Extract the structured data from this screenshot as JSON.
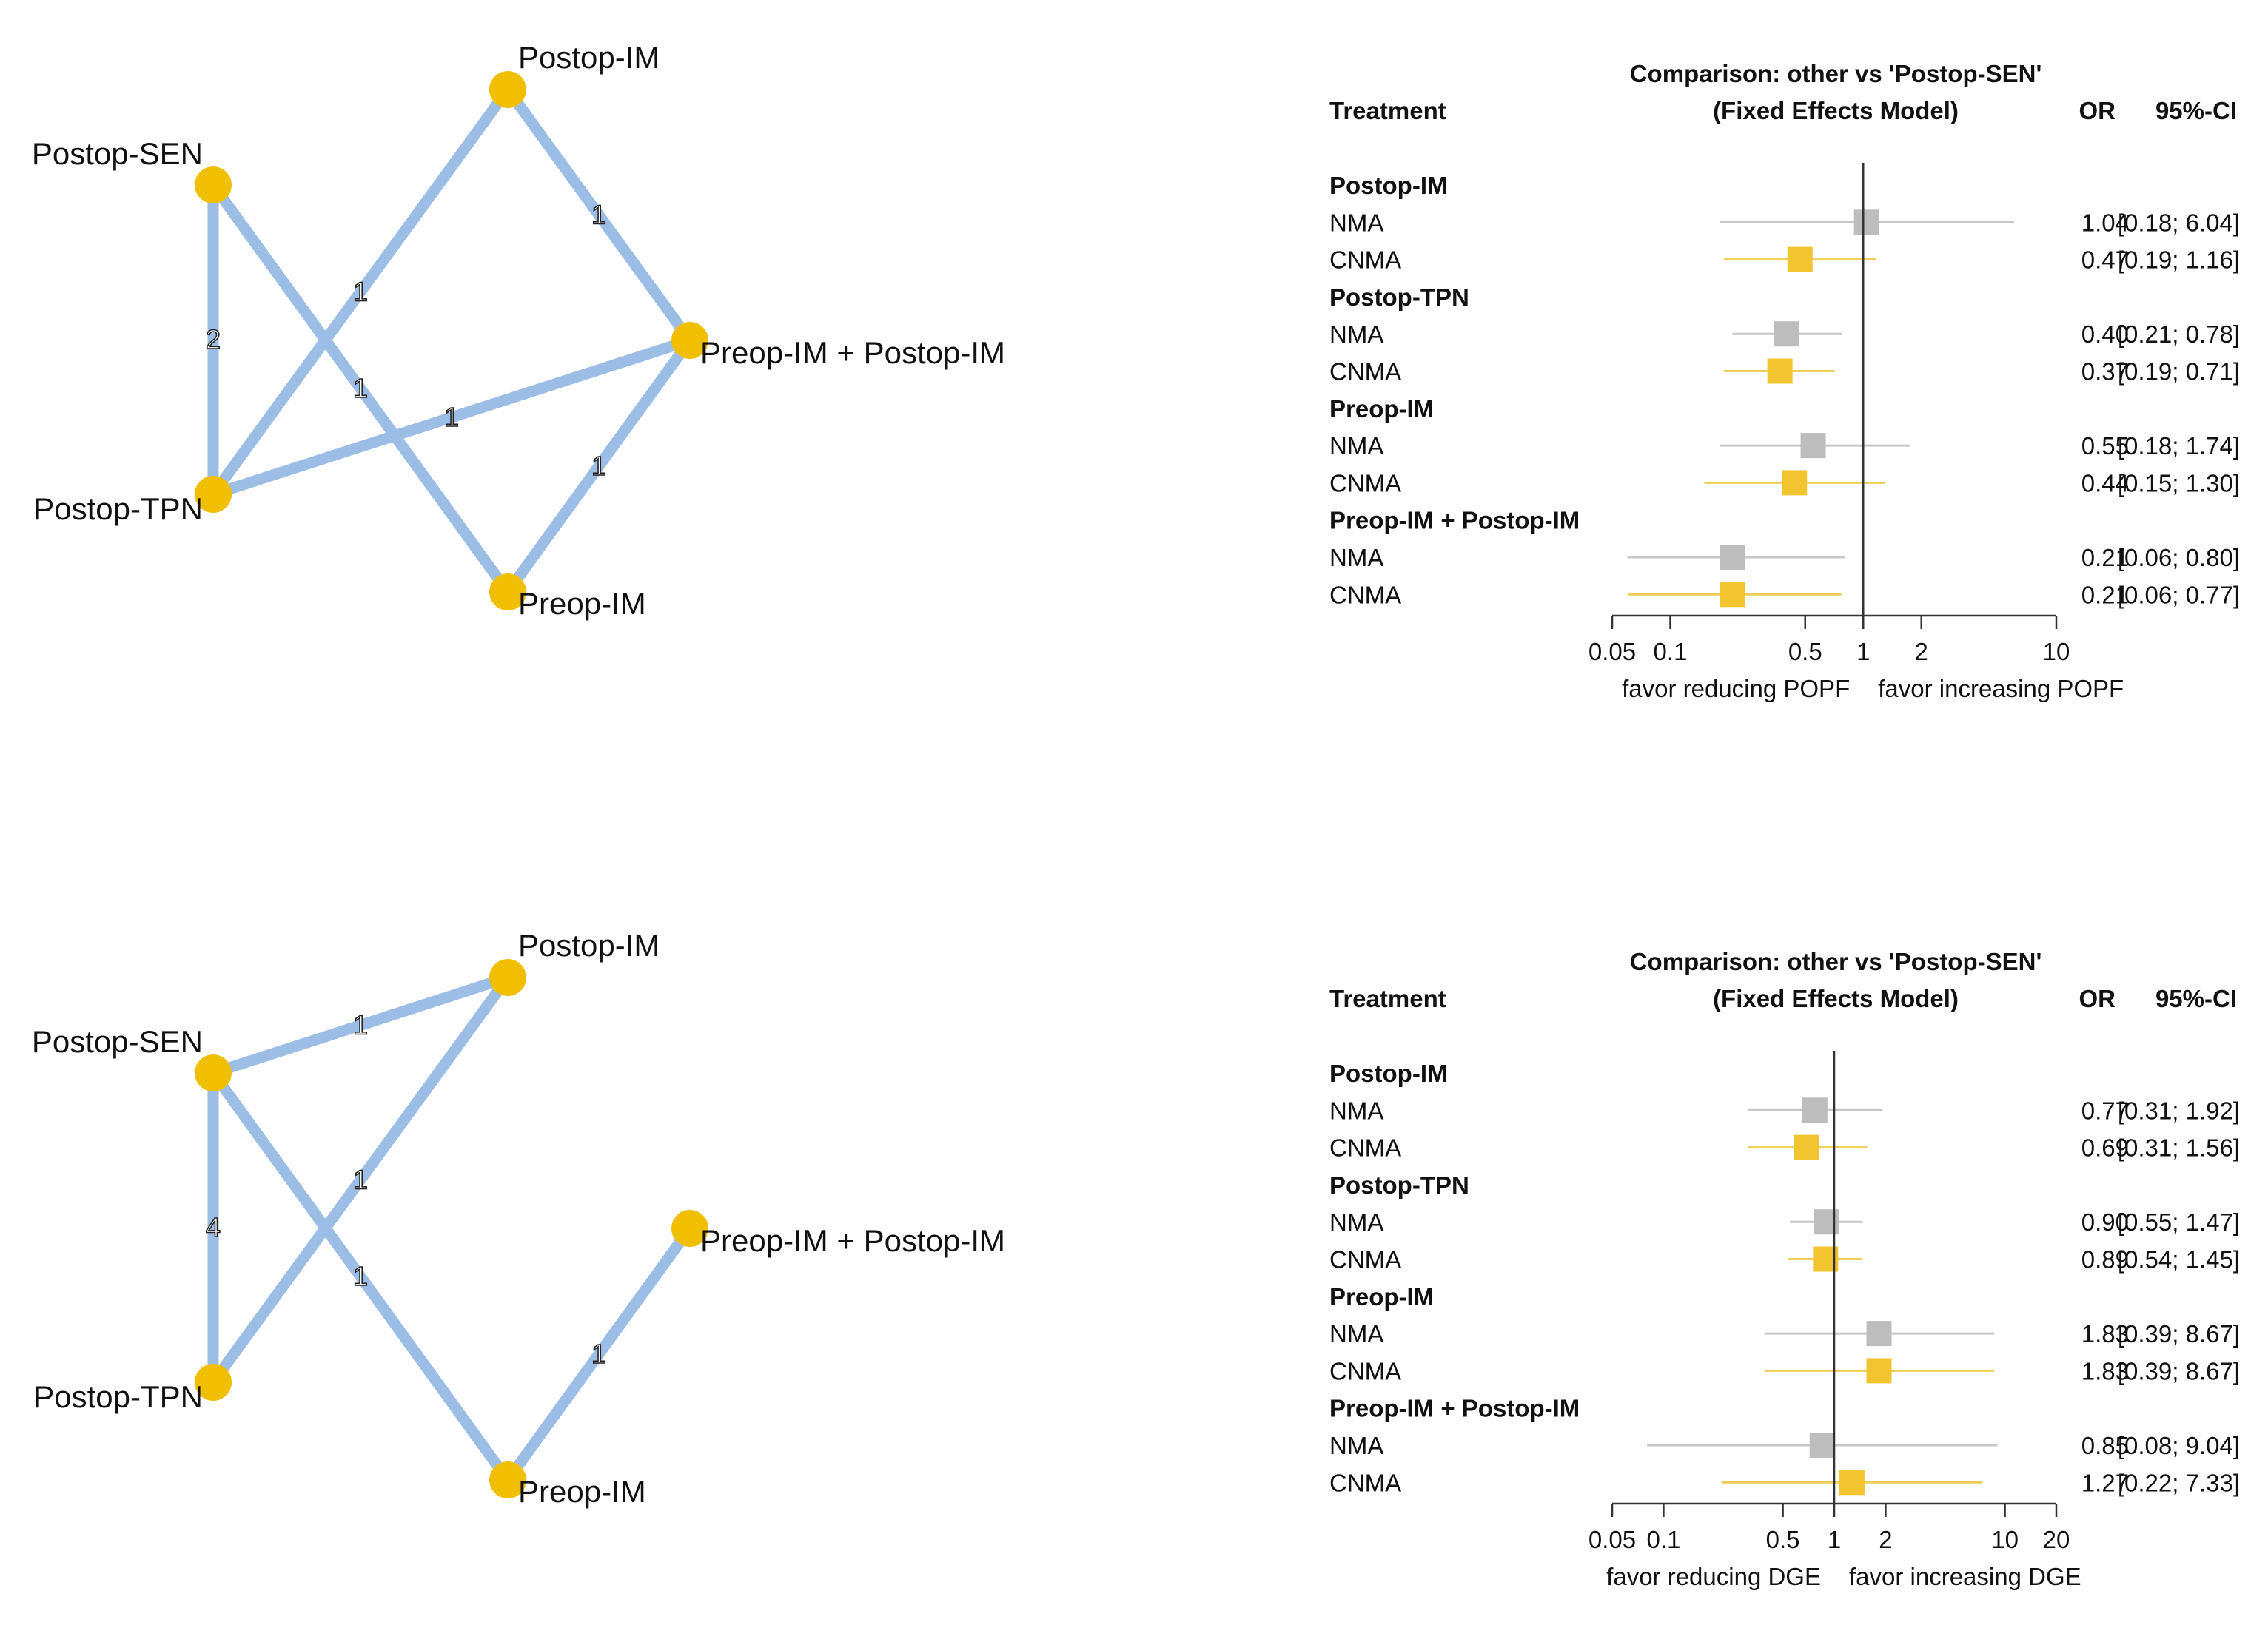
{
  "colors": {
    "edge": "#9cbde6",
    "node": "#f0c000",
    "nma": "#bdbdbd",
    "cnma": "#f2c530",
    "nma_ci": "#c8c8c8",
    "cnma_ci": "#f0cd55",
    "axis": "#333333",
    "text": "#111111"
  },
  "chart_data": [
    {
      "type": "network",
      "nodes": [
        "Postop-IM",
        "Postop-SEN",
        "Preop-IM + Postop-IM",
        "Postop-TPN",
        "Preop-IM"
      ],
      "edges": [
        {
          "from": "Postop-SEN",
          "to": "Postop-TPN",
          "label": "2"
        },
        {
          "from": "Postop-SEN",
          "to": "Preop-IM",
          "label": "1"
        },
        {
          "from": "Postop-TPN",
          "to": "Postop-IM",
          "label": "1"
        },
        {
          "from": "Postop-TPN",
          "to": "Preop-IM + Postop-IM",
          "label": "1"
        },
        {
          "from": "Postop-IM",
          "to": "Preop-IM + Postop-IM",
          "label": "1"
        },
        {
          "from": "Preop-IM",
          "to": "Preop-IM + Postop-IM",
          "label": "1"
        }
      ]
    },
    {
      "type": "forest",
      "title_line1": "Comparison: other vs 'Postop-SEN'",
      "title_line2": "(Fixed Effects Model)",
      "col_treatment": "Treatment",
      "col_or": "OR",
      "col_ci": "95%-CI",
      "xscale": "log",
      "xlim": [
        0.05,
        10
      ],
      "xticks": [
        "0.05",
        "0.1",
        "0.5",
        "1",
        "2",
        "10"
      ],
      "xlabel_left": "favor reducing POPF",
      "xlabel_right": "favor increasing POPF",
      "groups": [
        {
          "name": "Postop-IM",
          "rows": [
            {
              "method": "NMA",
              "or": 1.04,
              "lo": 0.18,
              "hi": 6.04,
              "or_text": "1.04",
              "ci_text": "[0.18; 6.04]"
            },
            {
              "method": "CNMA",
              "or": 0.47,
              "lo": 0.19,
              "hi": 1.16,
              "or_text": "0.47",
              "ci_text": "[0.19; 1.16]"
            }
          ]
        },
        {
          "name": "Postop-TPN",
          "rows": [
            {
              "method": "NMA",
              "or": 0.4,
              "lo": 0.21,
              "hi": 0.78,
              "or_text": "0.40",
              "ci_text": "[0.21; 0.78]"
            },
            {
              "method": "CNMA",
              "or": 0.37,
              "lo": 0.19,
              "hi": 0.71,
              "or_text": "0.37",
              "ci_text": "[0.19; 0.71]"
            }
          ]
        },
        {
          "name": "Preop-IM",
          "rows": [
            {
              "method": "NMA",
              "or": 0.55,
              "lo": 0.18,
              "hi": 1.74,
              "or_text": "0.55",
              "ci_text": "[0.18; 1.74]"
            },
            {
              "method": "CNMA",
              "or": 0.44,
              "lo": 0.15,
              "hi": 1.3,
              "or_text": "0.44",
              "ci_text": "[0.15; 1.30]"
            }
          ]
        },
        {
          "name": "Preop-IM + Postop-IM",
          "rows": [
            {
              "method": "NMA",
              "or": 0.21,
              "lo": 0.06,
              "hi": 0.8,
              "or_text": "0.21",
              "ci_text": "[0.06; 0.80]"
            },
            {
              "method": "CNMA",
              "or": 0.21,
              "lo": 0.06,
              "hi": 0.77,
              "or_text": "0.21",
              "ci_text": "[0.06; 0.77]"
            }
          ]
        }
      ]
    },
    {
      "type": "network",
      "nodes": [
        "Postop-IM",
        "Postop-SEN",
        "Preop-IM + Postop-IM",
        "Postop-TPN",
        "Preop-IM"
      ],
      "edges": [
        {
          "from": "Postop-SEN",
          "to": "Postop-IM",
          "label": "1"
        },
        {
          "from": "Postop-SEN",
          "to": "Postop-TPN",
          "label": "4"
        },
        {
          "from": "Postop-SEN",
          "to": "Preop-IM",
          "label": "1"
        },
        {
          "from": "Postop-TPN",
          "to": "Postop-IM",
          "label": "1"
        },
        {
          "from": "Preop-IM",
          "to": "Preop-IM + Postop-IM",
          "label": "1"
        }
      ]
    },
    {
      "type": "forest",
      "title_line1": "Comparison: other vs 'Postop-SEN'",
      "title_line2": "(Fixed Effects Model)",
      "col_treatment": "Treatment",
      "col_or": "OR",
      "col_ci": "95%-CI",
      "xscale": "log",
      "xlim": [
        0.05,
        20
      ],
      "xticks": [
        "0.05",
        "0.1",
        "0.5",
        "1",
        "2",
        "10",
        "20"
      ],
      "xlabel_left": "favor reducing DGE",
      "xlabel_right": "favor increasing DGE",
      "groups": [
        {
          "name": "Postop-IM",
          "rows": [
            {
              "method": "NMA",
              "or": 0.77,
              "lo": 0.31,
              "hi": 1.92,
              "or_text": "0.77",
              "ci_text": "[0.31; 1.92]"
            },
            {
              "method": "CNMA",
              "or": 0.69,
              "lo": 0.31,
              "hi": 1.56,
              "or_text": "0.69",
              "ci_text": "[0.31; 1.56]"
            }
          ]
        },
        {
          "name": "Postop-TPN",
          "rows": [
            {
              "method": "NMA",
              "or": 0.9,
              "lo": 0.55,
              "hi": 1.47,
              "or_text": "0.90",
              "ci_text": "[0.55; 1.47]"
            },
            {
              "method": "CNMA",
              "or": 0.89,
              "lo": 0.54,
              "hi": 1.45,
              "or_text": "0.89",
              "ci_text": "[0.54; 1.45]"
            }
          ]
        },
        {
          "name": "Preop-IM",
          "rows": [
            {
              "method": "NMA",
              "or": 1.83,
              "lo": 0.39,
              "hi": 8.67,
              "or_text": "1.83",
              "ci_text": "[0.39; 8.67]"
            },
            {
              "method": "CNMA",
              "or": 1.83,
              "lo": 0.39,
              "hi": 8.67,
              "or_text": "1.83",
              "ci_text": "[0.39; 8.67]"
            }
          ]
        },
        {
          "name": "Preop-IM + Postop-IM",
          "rows": [
            {
              "method": "NMA",
              "or": 0.85,
              "lo": 0.08,
              "hi": 9.04,
              "or_text": "0.85",
              "ci_text": "[0.08; 9.04]"
            },
            {
              "method": "CNMA",
              "or": 1.27,
              "lo": 0.22,
              "hi": 7.33,
              "or_text": "1.27",
              "ci_text": "[0.22; 7.33]"
            }
          ]
        }
      ]
    }
  ]
}
